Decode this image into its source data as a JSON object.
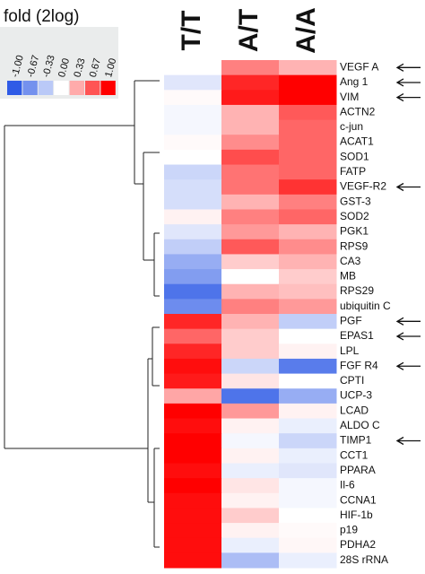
{
  "chart_data": {
    "type": "heatmap",
    "title": "fold (2log)",
    "columns": [
      "T/T",
      "A/T",
      "A/A"
    ],
    "rows": [
      "VEGF A",
      "Ang 1",
      "VIM",
      "ACTN2",
      "c-jun",
      "ACAT1",
      "SOD1",
      "FATP",
      "VEGF-R2",
      "GST-3",
      "SOD2",
      "PGK1",
      "RPS9",
      "CA3",
      "MB",
      "RPS29",
      "ubiquitin C",
      "PGF",
      "EPAS1",
      "LPL",
      "FGF R4",
      "CPTI",
      "UCP-3",
      "LCAD",
      "ALDO C",
      "TIMP1",
      "CCT1",
      "PPARA",
      "Il-6",
      "CCNA1",
      "HIF-1b",
      "p19",
      "PDHA2",
      "28S rRNA"
    ],
    "values": [
      [
        0.0,
        0.5,
        0.3
      ],
      [
        -0.15,
        0.85,
        1.0
      ],
      [
        0.02,
        0.9,
        1.0
      ],
      [
        -0.05,
        0.3,
        0.65
      ],
      [
        -0.05,
        0.3,
        0.6
      ],
      [
        0.02,
        0.45,
        0.6
      ],
      [
        0.0,
        0.7,
        0.6
      ],
      [
        -0.25,
        0.55,
        0.6
      ],
      [
        -0.2,
        0.55,
        0.8
      ],
      [
        -0.2,
        0.3,
        0.5
      ],
      [
        0.05,
        0.5,
        0.6
      ],
      [
        -0.15,
        0.4,
        0.3
      ],
      [
        -0.3,
        0.65,
        0.45
      ],
      [
        -0.5,
        0.2,
        0.3
      ],
      [
        -0.6,
        0.0,
        0.2
      ],
      [
        -0.85,
        0.3,
        0.25
      ],
      [
        -0.7,
        0.5,
        0.4
      ],
      [
        0.85,
        0.3,
        -0.3
      ],
      [
        0.6,
        0.2,
        0.0
      ],
      [
        0.85,
        0.2,
        0.05
      ],
      [
        0.95,
        -0.25,
        -0.8
      ],
      [
        0.9,
        0.1,
        0.0
      ],
      [
        0.35,
        -0.85,
        -0.5
      ],
      [
        1.0,
        0.4,
        0.05
      ],
      [
        0.95,
        0.05,
        -0.1
      ],
      [
        1.0,
        -0.05,
        -0.25
      ],
      [
        1.0,
        0.05,
        -0.1
      ],
      [
        0.95,
        -0.1,
        -0.15
      ],
      [
        1.0,
        0.1,
        -0.05
      ],
      [
        0.95,
        0.05,
        -0.05
      ],
      [
        0.95,
        0.2,
        0.0
      ],
      [
        0.95,
        0.05,
        0.02
      ],
      [
        0.95,
        -0.1,
        0.03
      ],
      [
        0.95,
        -0.4,
        -0.1
      ]
    ],
    "clim": [
      -1,
      1
    ],
    "colorscale": [
      "#2f5be6",
      "#ffffff",
      "#ff0000"
    ],
    "colorbar_ticks": [
      {
        "value": -1,
        "label": "-1.00"
      },
      {
        "value": -0.67,
        "label": "-0.67"
      },
      {
        "value": -0.33,
        "label": "-0.33"
      },
      {
        "value": 0,
        "label": "0.00"
      },
      {
        "value": 0.33,
        "label": "0.33"
      },
      {
        "value": 0.67,
        "label": "0.67"
      },
      {
        "value": 1,
        "label": "1.00"
      }
    ],
    "arrow_rows": [
      0,
      1,
      2,
      8,
      17,
      18,
      20,
      25
    ]
  }
}
